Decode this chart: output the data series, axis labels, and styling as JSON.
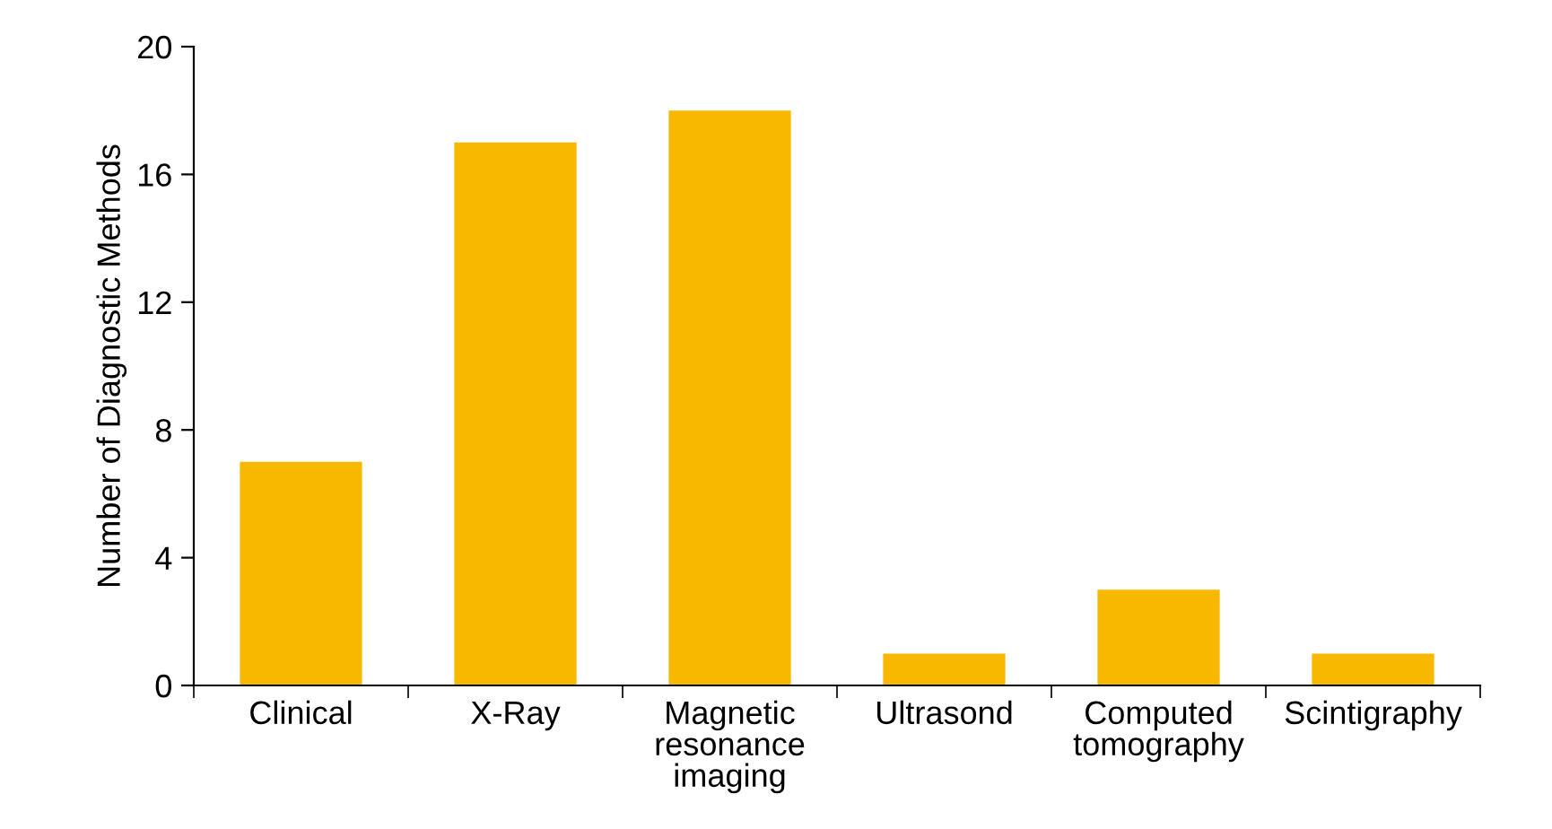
{
  "chart_data": {
    "type": "bar",
    "ylabel": "Number of Diagnostic Methods",
    "categories": [
      "Clinical",
      "X-Ray",
      "Magnetic\nresonance\nimaging",
      "Ultrasond",
      "Computed\ntomography",
      "Scintigraphy"
    ],
    "values": [
      7,
      17,
      18,
      1,
      3,
      1
    ],
    "color": "#f9b800",
    "ylim": [
      0,
      20
    ],
    "yticks": [
      0,
      4,
      8,
      12,
      16,
      20
    ],
    "grid": false,
    "legend": false
  }
}
